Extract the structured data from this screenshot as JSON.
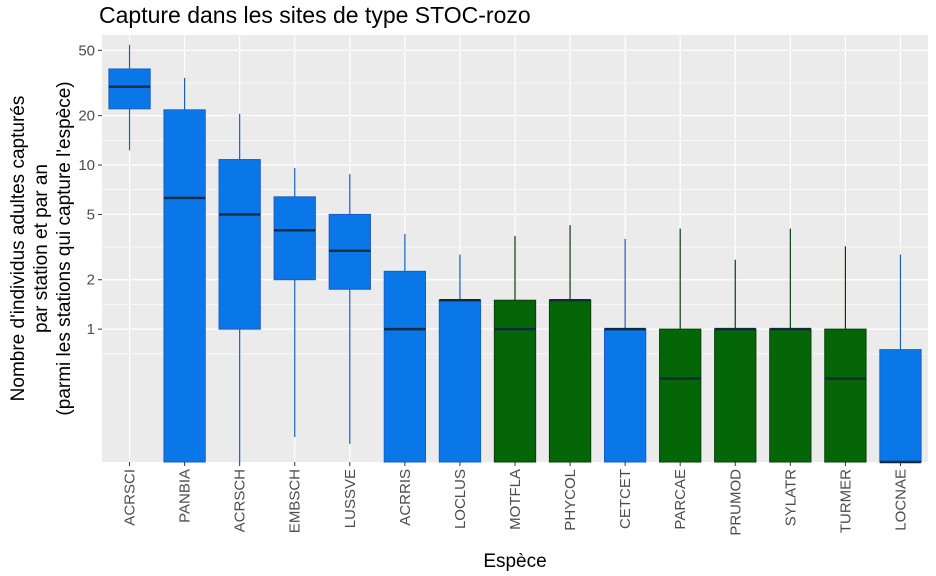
{
  "chart_data": {
    "type": "boxplot",
    "title": "Capture dans les sites de type STOC-rozo",
    "xlabel": "Espèce",
    "ylabel_lines": [
      "Nombre d'individus adultes capturés",
      "par station et par an",
      "(parmi les stations qui capture l'espèce)"
    ],
    "y_scale": "log",
    "y_ticks": [
      1,
      2,
      5,
      10,
      20,
      50
    ],
    "ylim": [
      0.155,
      62
    ],
    "grid": true,
    "colors": {
      "group_a": "#0a77e8",
      "group_b": "#056608",
      "panel_bg": "#ebebeb",
      "grid": "#ffffff",
      "whisker_a": "#1b5ec0",
      "whisker_b": "#0a3d0a"
    },
    "boxes": [
      {
        "category": "ACRSCI",
        "group": "a",
        "whisker_low": 12.3,
        "q1": 22,
        "median": 30,
        "q3": 38.5,
        "whisker_high": 54
      },
      {
        "category": "PANBIA",
        "group": "a",
        "whisker_low": 0.155,
        "q1": 0.155,
        "median": 6.3,
        "q3": 21.7,
        "whisker_high": 34
      },
      {
        "category": "ACRSCH",
        "group": "a",
        "whisker_low": 0.155,
        "q1": 1.0,
        "median": 5.0,
        "q3": 10.8,
        "whisker_high": 20.5
      },
      {
        "category": "EMBSCH",
        "group": "a",
        "whisker_low": 0.22,
        "q1": 2.0,
        "median": 4.0,
        "q3": 6.4,
        "whisker_high": 9.6
      },
      {
        "category": "LUSSVE",
        "group": "a",
        "whisker_low": 0.2,
        "q1": 1.75,
        "median": 3.0,
        "q3": 5.0,
        "whisker_high": 8.8
      },
      {
        "category": "ACRRIS",
        "group": "a",
        "whisker_low": 0.155,
        "q1": 0.155,
        "median": 1.0,
        "q3": 2.25,
        "whisker_high": 3.8
      },
      {
        "category": "LOCLUS",
        "group": "a",
        "whisker_low": 0.155,
        "q1": 0.155,
        "median": 1.5,
        "q3": 1.5,
        "whisker_high": 2.85
      },
      {
        "category": "MOTFLA",
        "group": "b",
        "whisker_low": 0.155,
        "q1": 0.155,
        "median": 1.0,
        "q3": 1.5,
        "whisker_high": 3.7
      },
      {
        "category": "PHYCOL",
        "group": "b",
        "whisker_low": 0.155,
        "q1": 0.155,
        "median": 1.5,
        "q3": 1.5,
        "whisker_high": 4.3
      },
      {
        "category": "CETCET",
        "group": "a",
        "whisker_low": 0.155,
        "q1": 0.155,
        "median": 1.0,
        "q3": 1.0,
        "whisker_high": 3.55
      },
      {
        "category": "PARCAE",
        "group": "b",
        "whisker_low": 0.155,
        "q1": 0.155,
        "median": 0.5,
        "q3": 1.0,
        "whisker_high": 4.1
      },
      {
        "category": "PRUMOD",
        "group": "b",
        "whisker_low": 0.155,
        "q1": 0.155,
        "median": 1.0,
        "q3": 1.0,
        "whisker_high": 2.65
      },
      {
        "category": "SYLATR",
        "group": "b",
        "whisker_low": 0.155,
        "q1": 0.155,
        "median": 1.0,
        "q3": 1.0,
        "whisker_high": 4.1
      },
      {
        "category": "TURMER",
        "group": "b",
        "whisker_low": 0.155,
        "q1": 0.155,
        "median": 0.5,
        "q3": 1.0,
        "whisker_high": 3.2
      },
      {
        "category": "LOCNAE",
        "group": "a",
        "whisker_low": 0.155,
        "q1": 0.155,
        "median": 0.155,
        "q3": 0.75,
        "whisker_high": 2.85
      }
    ]
  }
}
